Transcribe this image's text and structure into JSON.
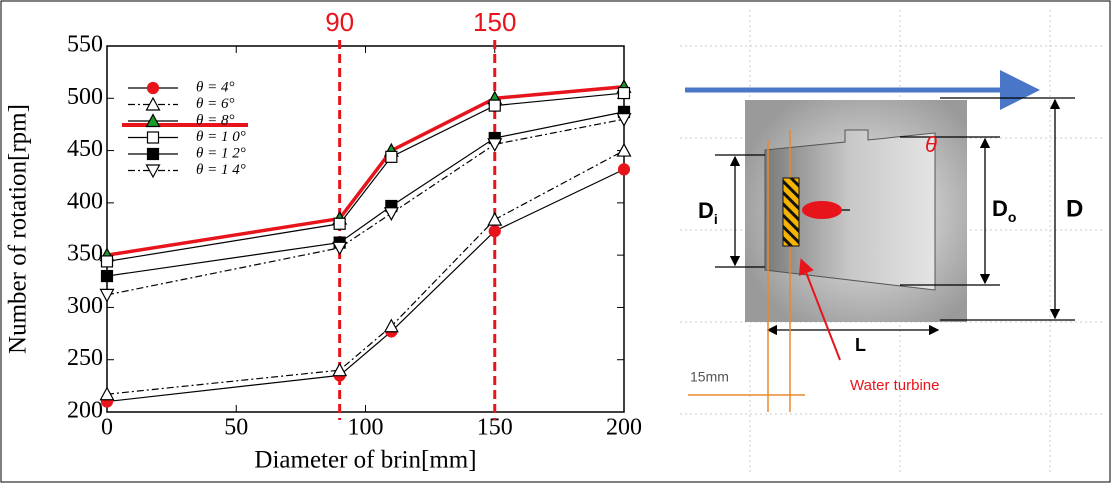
{
  "chart_data": {
    "type": "line",
    "x_label": "Diameter of brin[mm]",
    "y_label": "Number of rotation[rpm]",
    "x": [
      0,
      90,
      110,
      150,
      200
    ],
    "xlim": [
      0,
      200
    ],
    "xticks": [
      0,
      50,
      100,
      150,
      200
    ],
    "ylim": [
      200,
      550
    ],
    "yticks": [
      200,
      250,
      300,
      350,
      400,
      450,
      500,
      550
    ],
    "vlines": [
      90,
      150
    ],
    "vline_color": "#e8141b",
    "series": [
      {
        "name": "θ = 4°",
        "color": "#e8141b",
        "marker": "circle",
        "filled": true,
        "dash": false,
        "values": [
          210,
          235,
          277,
          373,
          432
        ]
      },
      {
        "name": "θ = 6°",
        "color": "#000000",
        "marker": "triangle",
        "filled": false,
        "dash": true,
        "values": [
          217,
          240,
          282,
          384,
          450
        ]
      },
      {
        "name": "θ = 8°",
        "color": "#1a9a2a",
        "line_color": "#e8141b",
        "marker": "triangle",
        "filled": true,
        "dash": false,
        "values": [
          350,
          385,
          450,
          500,
          511
        ]
      },
      {
        "name": "θ = 1 0°",
        "color": "#000000",
        "marker": "square",
        "filled": false,
        "dash": false,
        "values": [
          344,
          380,
          444,
          493,
          505
        ]
      },
      {
        "name": "θ = 1 2°",
        "color": "#000000",
        "marker": "square",
        "filled": true,
        "dash": false,
        "values": [
          330,
          362,
          397,
          462,
          487
        ]
      },
      {
        "name": "θ = 1 4°",
        "color": "#000000",
        "marker": "down-triangle",
        "filled": false,
        "dash": true,
        "values": [
          312,
          357,
          390,
          456,
          480
        ]
      }
    ]
  },
  "diagram": {
    "theta": "θ",
    "d_inner": {
      "label": "D",
      "sub": "i"
    },
    "d_outer": {
      "label": "D",
      "sub": "o"
    },
    "d": "D",
    "l": "L",
    "gap": "15mm",
    "turbine": "Water turbine"
  }
}
